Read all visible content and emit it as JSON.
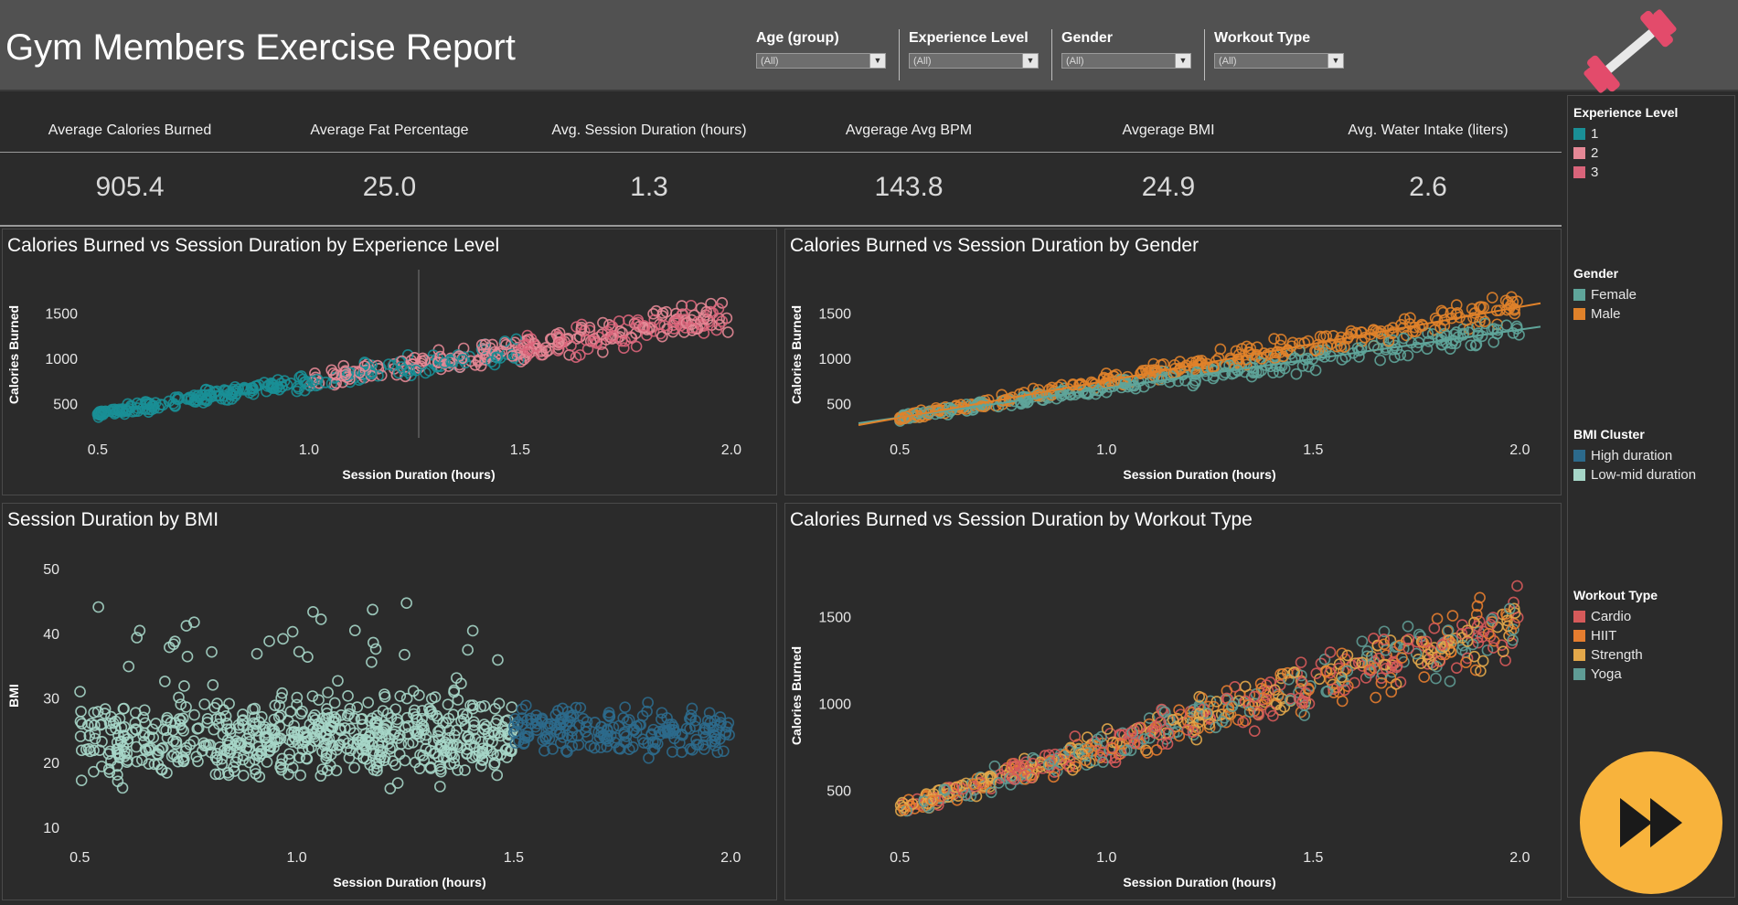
{
  "header": {
    "title": "Gym Members Exercise Report",
    "filters": [
      {
        "label": "Age (group)",
        "value": "(All)"
      },
      {
        "label": "Experience Level",
        "value": "(All)"
      },
      {
        "label": "Gender",
        "value": "(All)"
      },
      {
        "label": "Workout Type",
        "value": "(All)"
      }
    ]
  },
  "kpis": [
    {
      "label": "Average Calories Burned",
      "value": "905.4"
    },
    {
      "label": "Average Fat Percentage",
      "value": "25.0"
    },
    {
      "label": "Avg. Session Duration (hours)",
      "value": "1.3"
    },
    {
      "label": "Avgerage Avg BPM",
      "value": "143.8"
    },
    {
      "label": "Avgerage BMI",
      "value": "24.9"
    },
    {
      "label": "Avg. Water Intake (liters)",
      "value": "2.6"
    }
  ],
  "legend": {
    "experience": {
      "title": "Experience Level",
      "items": [
        {
          "label": "1",
          "color": "#1a8f96"
        },
        {
          "label": "2",
          "color": "#e58896"
        },
        {
          "label": "3",
          "color": "#d9647a"
        }
      ]
    },
    "gender": {
      "title": "Gender",
      "items": [
        {
          "label": "Female",
          "color": "#5fa59a"
        },
        {
          "label": "Male",
          "color": "#e0822a"
        }
      ]
    },
    "bmi": {
      "title": "BMI Cluster",
      "items": [
        {
          "label": "High duration",
          "color": "#2c6a8c"
        },
        {
          "label": "Low-mid duration",
          "color": "#a6d6c8"
        }
      ]
    },
    "workout": {
      "title": "Workout Type",
      "items": [
        {
          "label": "Cardio",
          "color": "#d65a5a"
        },
        {
          "label": "HIIT",
          "color": "#e57d2f"
        },
        {
          "label": "Strength",
          "color": "#e3a84a"
        },
        {
          "label": "Yoga",
          "color": "#5f9c95"
        }
      ]
    }
  },
  "icons": {
    "logo": "dumbbell-icon",
    "next": "fast-forward-icon",
    "dropdown": "caret-down-icon"
  },
  "chart_data": [
    {
      "type": "scatter",
      "title": "Calories Burned vs Session Duration by Experience Level",
      "xlabel": "Session Duration (hours)",
      "ylabel": "Calories Burned",
      "xlim": [
        0.47,
        2.05
      ],
      "ylim": [
        250,
        1850
      ],
      "xticks": [
        "0.5",
        "1.0",
        "1.5",
        "2.0"
      ],
      "yticks": [
        "500",
        "1000",
        "1500"
      ],
      "reference_line_x": 1.26,
      "series": [
        {
          "name": "1",
          "color": "#1a8f96",
          "x_range": [
            0.5,
            1.5
          ],
          "note": "points follow rising trend"
        },
        {
          "name": "2",
          "color": "#e58896",
          "x_range": [
            1.0,
            1.5
          ]
        },
        {
          "name": "3",
          "color": "#d9647a",
          "x_range": [
            1.5,
            2.0
          ]
        }
      ],
      "trend": {
        "slope": 720,
        "intercept": 35
      },
      "x": [
        0.5,
        0.75,
        1.0,
        1.25,
        1.5,
        1.75,
        2.0
      ],
      "y": [
        400,
        580,
        760,
        935,
        1115,
        1295,
        1475
      ]
    },
    {
      "type": "scatter",
      "title": "Calories Burned vs Session Duration by Gender",
      "xlabel": "Session Duration (hours)",
      "ylabel": "Calories Burned",
      "xlim": [
        0.4,
        2.05
      ],
      "ylim": [
        250,
        1850
      ],
      "xticks": [
        "0.5",
        "1.0",
        "1.5",
        "2.0"
      ],
      "yticks": [
        "500",
        "1000",
        "1500"
      ],
      "series": [
        {
          "name": "Female",
          "color": "#5fa59a",
          "trend_x": [
            0.4,
            2.05
          ],
          "trend_y": [
            290,
            1360
          ]
        },
        {
          "name": "Male",
          "color": "#e0822a",
          "trend_x": [
            0.4,
            2.05
          ],
          "trend_y": [
            270,
            1620
          ]
        }
      ]
    },
    {
      "type": "scatter",
      "title": "Session Duration by BMI",
      "xlabel": "Session Duration (hours)",
      "ylabel": "BMI",
      "xlim": [
        0.47,
        2.05
      ],
      "ylim": [
        9,
        52
      ],
      "xticks": [
        "0.5",
        "1.0",
        "1.5",
        "2.0"
      ],
      "yticks": [
        "10",
        "20",
        "30",
        "40",
        "50"
      ],
      "series": [
        {
          "name": "Low-mid duration",
          "color": "#a6d6c8",
          "x_range": [
            0.5,
            1.5
          ],
          "y_range": [
            12,
            50
          ]
        },
        {
          "name": "High duration",
          "color": "#2c6a8c",
          "x_range": [
            1.5,
            2.0
          ],
          "y_range": [
            18,
            35
          ]
        }
      ]
    },
    {
      "type": "scatter",
      "title": "Calories Burned vs Session Duration by  Workout Type",
      "xlabel": "Session Duration (hours)",
      "ylabel": "Calories Burned",
      "xlim": [
        0.4,
        2.05
      ],
      "ylim": [
        250,
        1850
      ],
      "xticks": [
        "0.5",
        "1.0",
        "1.5",
        "2.0"
      ],
      "yticks": [
        "500",
        "1000",
        "1500"
      ],
      "series": [
        {
          "name": "Cardio",
          "color": "#d65a5a"
        },
        {
          "name": "HIIT",
          "color": "#e57d2f"
        },
        {
          "name": "Strength",
          "color": "#e3a84a"
        },
        {
          "name": "Yoga",
          "color": "#5f9c95"
        }
      ]
    }
  ]
}
